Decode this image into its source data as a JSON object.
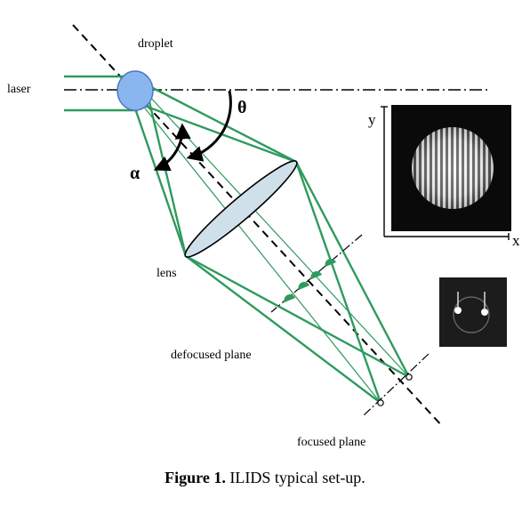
{
  "labels": {
    "droplet": "droplet",
    "laser": "laser",
    "theta": "θ",
    "alpha": "α",
    "lens": "lens",
    "defocused_plane": "defocused plane",
    "focused_plane": "focused plane",
    "axis_x": "x",
    "axis_y": "y"
  },
  "caption": {
    "prefix": "Figure 1.",
    "text": "ILIDS typical set-up."
  },
  "colors": {
    "rays": "#2f9a5e",
    "droplet": "#8ab6ef",
    "lens": "#cfe0ea"
  }
}
